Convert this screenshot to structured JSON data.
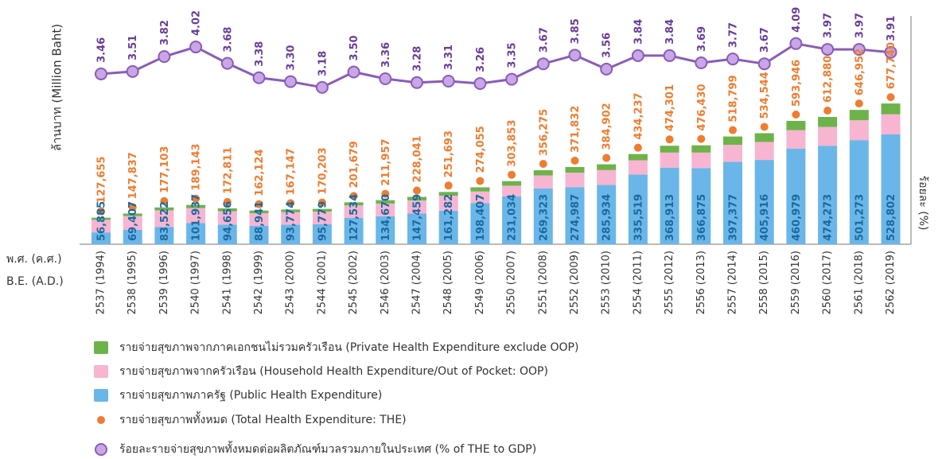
{
  "chart_data": {
    "type": "bar",
    "y_label": "ล้านบาท (Million Baht)",
    "y2_label": "ร้อยละ (%)",
    "x_label_th": "พ.ศ. (ค.ศ.)",
    "x_label_en": "B.E. (A.D.)",
    "categories": [
      "2537 (1994)",
      "2538 (1995)",
      "2539 (1996)",
      "2540 (1997)",
      "2541 (1998)",
      "2542 (1999)",
      "2543 (2000)",
      "2544 (2001)",
      "2545 (2002)",
      "2546 (2003)",
      "2547 (2004)",
      "2548 (2005)",
      "2549 (2006)",
      "2550 (2007)",
      "2551 (2008)",
      "2552 (2009)",
      "2553 (2010)",
      "2554 (2011)",
      "2555 (2012)",
      "2556 (2013)",
      "2557 (2014)",
      "2558 (2015)",
      "2559 (2016)",
      "2560 (2017)",
      "2561 (2018)",
      "2562 (2019)"
    ],
    "ylim": [
      0,
      1000000
    ],
    "y2lim": [
      2.5,
      4.5
    ],
    "series": [
      {
        "name": "รายจ่ายสุขภาพภาครัฐ (Public Health  Expenditure)",
        "type": "bar",
        "color": "#6bb6e8",
        "values": [
          56885,
          69407,
          83522,
          101937,
          94656,
          88941,
          93774,
          95779,
          127534,
          134670,
          147459,
          161282,
          198407,
          231034,
          269323,
          274987,
          285934,
          335519,
          368913,
          366875,
          397377,
          405916,
          460979,
          474273,
          501273,
          528802
        ],
        "value_labels": [
          "56,885",
          "69,407",
          "83,522",
          "101,937",
          "94,656",
          "88,941",
          "93,774",
          "95,779",
          "127,534",
          "134,670",
          "147,459",
          "161,282",
          "198,407",
          "231,034",
          "269,323",
          "274,987",
          "285,934",
          "335,519",
          "368,913",
          "366,875",
          "397,377",
          "405,916",
          "460,979",
          "474,273",
          "501,273",
          "528,802"
        ]
      },
      {
        "name": "รายจ่ายสุขภาพจากครัวเรือน (Household Health Expenditure/Out of Pocket: OOP)",
        "type": "bar",
        "color": "#f7b5d2",
        "values": [
          60770,
          66430,
          79581,
          72206,
          64155,
          60183,
          60373,
          61424,
          59145,
          61287,
          63582,
          72411,
          55648,
          50819,
          61952,
          69845,
          70968,
          68718,
          72388,
          74555,
          81422,
          86628,
          87967,
          90607,
          95679,
          96938
        ]
      },
      {
        "name": "รายจ่ายสุขภาพจากภาคเอกชนไม่รวมครัวเรือน (Private Health Expenditure exclude OOP)",
        "type": "bar",
        "color": "#6db34a",
        "values": [
          10000,
          12000,
          14000,
          15000,
          14000,
          13000,
          13000,
          13000,
          15000,
          16000,
          17000,
          18000,
          20000,
          22000,
          25000,
          27000,
          28000,
          30000,
          33000,
          35000,
          40000,
          42000,
          45000,
          48000,
          50000,
          52000
        ]
      },
      {
        "name": "รายจ่ายสุขภาพทั้งหมด (Total Health  Expenditure: THE)",
        "type": "dot",
        "color": "#f07c30",
        "values": [
          127655,
          147837,
          177103,
          189143,
          172811,
          162124,
          167147,
          170203,
          201679,
          211957,
          228041,
          251693,
          274055,
          303853,
          356275,
          371832,
          384902,
          434237,
          474301,
          476430,
          518799,
          534544,
          593946,
          612880,
          646952,
          677740
        ],
        "value_labels": [
          "127,655",
          "147,837",
          "177,103",
          "189,143",
          "172,811",
          "162,124",
          "167,147",
          "170,203",
          "201,679",
          "211,957",
          "228,041",
          "251,693",
          "274,055",
          "303,853",
          "356,275",
          "371,832",
          "384,902",
          "434,237",
          "474,301",
          "476,430",
          "518,799",
          "534,544",
          "593,946",
          "612,880",
          "646,952",
          "677,740"
        ]
      },
      {
        "name": "ร้อยละรายจ่ายสุขภาพทั้งหมดต่อผลิตภัณฑ์มวลรวมภายในประเทศ (% of THE to GDP)",
        "type": "line",
        "axis": "y2",
        "color": "#8a5cb8",
        "values": [
          3.46,
          3.51,
          3.82,
          4.02,
          3.68,
          3.38,
          3.3,
          3.18,
          3.5,
          3.36,
          3.28,
          3.31,
          3.26,
          3.35,
          3.67,
          3.85,
          3.56,
          3.84,
          3.84,
          3.69,
          3.77,
          3.67,
          4.09,
          3.97,
          3.97,
          3.91
        ],
        "value_labels": [
          "3.46",
          "3.51",
          "3.82",
          "4.02",
          "3.68",
          "3.38",
          "3.30",
          "3.18",
          "3.50",
          "3.36",
          "3.28",
          "3.31",
          "3.26",
          "3.35",
          "3.67",
          "3.85",
          "3.56",
          "3.84",
          "3.84",
          "3.69",
          "3.77",
          "3.67",
          "4.09",
          "3.97",
          "3.97",
          "3.91"
        ]
      }
    ]
  }
}
